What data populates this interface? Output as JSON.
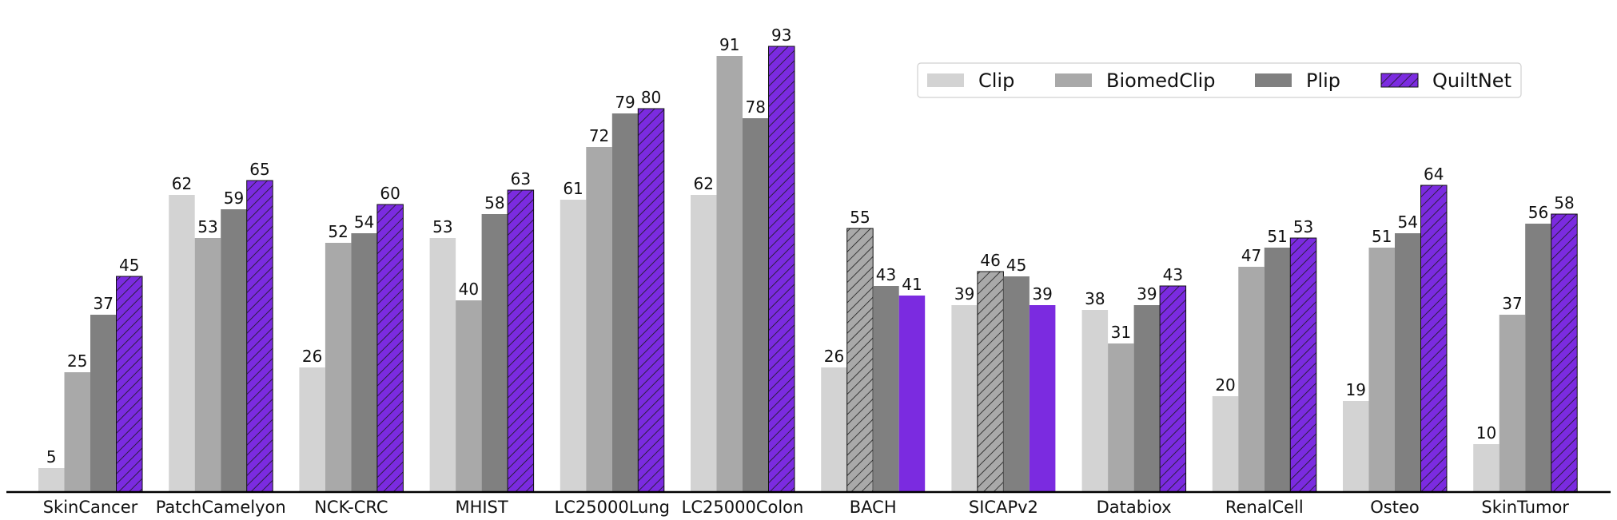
{
  "chart_data": {
    "type": "bar",
    "categories": [
      "SkinCancer",
      "PatchCamelyon",
      "NCK-CRC",
      "MHIST",
      "LC25000Lung",
      "LC25000Colon",
      "BACH",
      "SICAPv2",
      "Databiox",
      "RenalCell",
      "Osteo",
      "SkinTumor"
    ],
    "series": [
      {
        "name": "Clip",
        "values": [
          5,
          62,
          26,
          53,
          61,
          62,
          26,
          39,
          38,
          20,
          19,
          10
        ],
        "color": "#d3d3d3"
      },
      {
        "name": "BiomedClip",
        "values": [
          25,
          53,
          52,
          40,
          72,
          91,
          55,
          46,
          31,
          47,
          51,
          37
        ],
        "color": "#a9a9a9"
      },
      {
        "name": "Plip",
        "values": [
          37,
          59,
          54,
          58,
          79,
          78,
          43,
          45,
          39,
          51,
          54,
          56
        ],
        "color": "#808080"
      },
      {
        "name": "QuiltNet",
        "values": [
          45,
          65,
          60,
          63,
          80,
          93,
          41,
          39,
          43,
          53,
          64,
          58
        ],
        "color": "#7b2be0"
      }
    ],
    "hatched_exceptions": {
      "BiomedClip": [
        "BACH",
        "SICAPv2"
      ],
      "QuiltNet_unhatched": [
        "BACH",
        "SICAPv2"
      ]
    },
    "legend_position": "top-right",
    "title": "",
    "xlabel": "",
    "ylabel": "",
    "ylim": [
      0,
      100
    ],
    "grid": false
  }
}
